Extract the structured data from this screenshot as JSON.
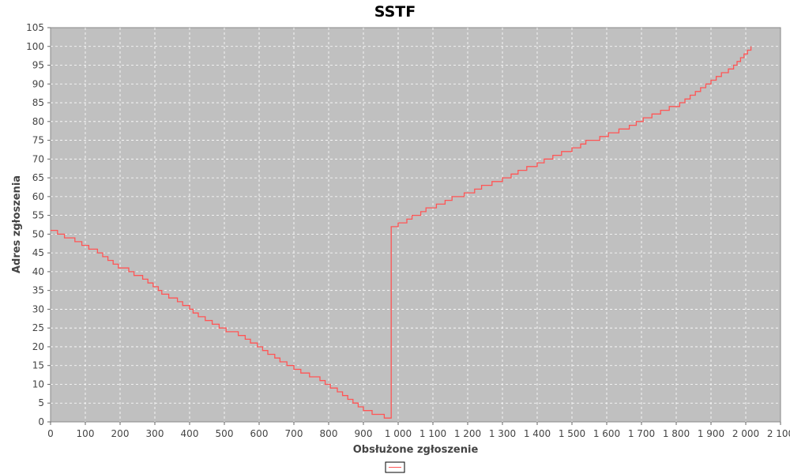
{
  "chart_data": {
    "type": "line",
    "title": "SSTF",
    "xlabel": "Obsłużone zgłoszenie",
    "ylabel": "Adres zgłoszenia",
    "xlim": [
      0,
      2100
    ],
    "ylim": [
      0,
      105
    ],
    "x_ticks": [
      0,
      100,
      200,
      300,
      400,
      500,
      600,
      700,
      800,
      900,
      1000,
      1100,
      1200,
      1300,
      1400,
      1500,
      1600,
      1700,
      1800,
      1900,
      2000,
      2100
    ],
    "x_tick_labels": [
      "0",
      "100",
      "200",
      "300",
      "400",
      "500",
      "600",
      "700",
      "800",
      "900",
      "1 000",
      "1 100",
      "1 200",
      "1 300",
      "1 400",
      "1 500",
      "1 600",
      "1 700",
      "1 800",
      "1 900",
      "2 000",
      "2 100"
    ],
    "y_ticks": [
      0,
      5,
      10,
      15,
      20,
      25,
      30,
      35,
      40,
      45,
      50,
      55,
      60,
      65,
      70,
      75,
      80,
      85,
      90,
      95,
      100,
      105
    ],
    "y_tick_labels": [
      "0",
      "5",
      "10",
      "15",
      "20",
      "25",
      "30",
      "35",
      "40",
      "45",
      "50",
      "55",
      "60",
      "65",
      "70",
      "75",
      "80",
      "85",
      "90",
      "95",
      "100",
      "105"
    ],
    "grid": true,
    "legend_position": "bottom-center",
    "colors": {
      "series": "#ff5555",
      "plot_background": "#c0c0c0",
      "grid": "#ffffff"
    },
    "series": [
      {
        "name": "",
        "step": true,
        "points": [
          [
            0,
            51
          ],
          [
            20,
            50
          ],
          [
            40,
            49
          ],
          [
            70,
            48
          ],
          [
            90,
            47
          ],
          [
            110,
            46
          ],
          [
            135,
            45
          ],
          [
            150,
            44
          ],
          [
            165,
            43
          ],
          [
            180,
            42
          ],
          [
            195,
            41
          ],
          [
            225,
            40
          ],
          [
            240,
            39
          ],
          [
            265,
            38
          ],
          [
            280,
            37
          ],
          [
            295,
            36
          ],
          [
            310,
            35
          ],
          [
            320,
            34
          ],
          [
            340,
            33
          ],
          [
            365,
            32
          ],
          [
            380,
            31
          ],
          [
            400,
            30
          ],
          [
            410,
            29
          ],
          [
            425,
            28
          ],
          [
            445,
            27
          ],
          [
            465,
            26
          ],
          [
            485,
            25
          ],
          [
            505,
            24
          ],
          [
            540,
            23
          ],
          [
            560,
            22
          ],
          [
            575,
            21
          ],
          [
            595,
            20
          ],
          [
            610,
            19
          ],
          [
            625,
            18
          ],
          [
            645,
            17
          ],
          [
            660,
            16
          ],
          [
            680,
            15
          ],
          [
            700,
            14
          ],
          [
            720,
            13
          ],
          [
            745,
            12
          ],
          [
            775,
            11
          ],
          [
            790,
            10
          ],
          [
            805,
            9
          ],
          [
            825,
            8
          ],
          [
            840,
            7
          ],
          [
            855,
            6
          ],
          [
            870,
            5
          ],
          [
            885,
            4
          ],
          [
            900,
            3
          ],
          [
            925,
            2
          ],
          [
            960,
            1
          ],
          [
            980,
            52
          ],
          [
            1000,
            53
          ],
          [
            1025,
            54
          ],
          [
            1040,
            55
          ],
          [
            1065,
            56
          ],
          [
            1080,
            57
          ],
          [
            1110,
            58
          ],
          [
            1135,
            59
          ],
          [
            1155,
            60
          ],
          [
            1190,
            61
          ],
          [
            1220,
            62
          ],
          [
            1240,
            63
          ],
          [
            1270,
            64
          ],
          [
            1300,
            65
          ],
          [
            1325,
            66
          ],
          [
            1345,
            67
          ],
          [
            1370,
            68
          ],
          [
            1400,
            69
          ],
          [
            1420,
            70
          ],
          [
            1445,
            71
          ],
          [
            1470,
            72
          ],
          [
            1500,
            73
          ],
          [
            1525,
            74
          ],
          [
            1540,
            75
          ],
          [
            1580,
            76
          ],
          [
            1605,
            77
          ],
          [
            1635,
            78
          ],
          [
            1665,
            79
          ],
          [
            1685,
            80
          ],
          [
            1705,
            81
          ],
          [
            1730,
            82
          ],
          [
            1755,
            83
          ],
          [
            1780,
            84
          ],
          [
            1810,
            85
          ],
          [
            1825,
            86
          ],
          [
            1840,
            87
          ],
          [
            1855,
            88
          ],
          [
            1870,
            89
          ],
          [
            1885,
            90
          ],
          [
            1900,
            91
          ],
          [
            1915,
            92
          ],
          [
            1930,
            93
          ],
          [
            1950,
            94
          ],
          [
            1965,
            95
          ],
          [
            1975,
            96
          ],
          [
            1985,
            97
          ],
          [
            1995,
            98
          ],
          [
            2005,
            99
          ],
          [
            2015,
            100
          ]
        ]
      }
    ]
  }
}
